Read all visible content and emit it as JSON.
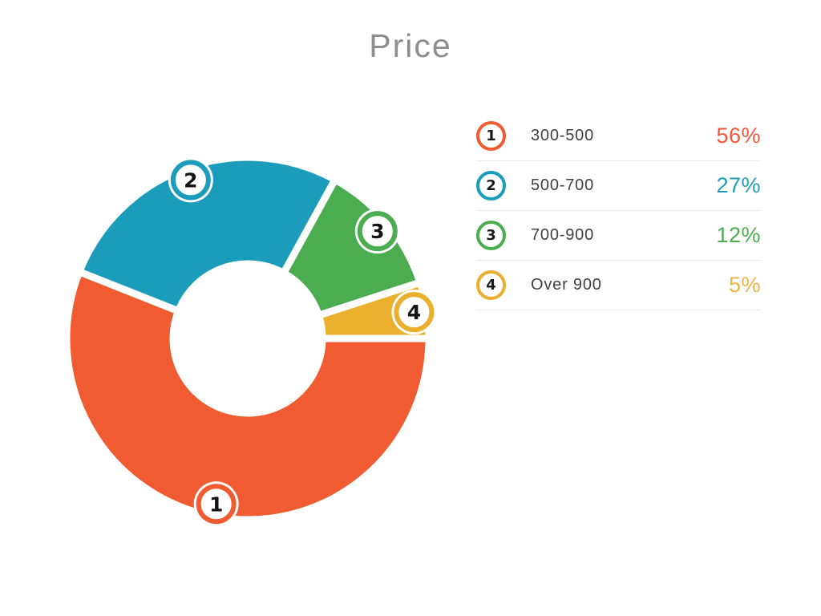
{
  "title": "Price",
  "chart_data": {
    "type": "pie",
    "donut": true,
    "title": "Price",
    "categories": [
      "300-500",
      "500-700",
      "700-900",
      "Over 900"
    ],
    "values": [
      56,
      27,
      12,
      5
    ],
    "unit": "%",
    "slice_colors": [
      "#F05B31",
      "#1A9CBA",
      "#4BAD50",
      "#EAAF2D"
    ],
    "marker_numbers": [
      "1",
      "2",
      "3",
      "4"
    ],
    "start_angle_deg": 0,
    "direction": "clockwise",
    "legend_position": "right"
  },
  "legend": {
    "rows": [
      {
        "num": "1",
        "label": "300-500",
        "value": "56%",
        "color": "#F05B31",
        "value_color": "#EF563A"
      },
      {
        "num": "2",
        "label": "500-700",
        "value": "27%",
        "color": "#1A9CBA",
        "value_color": "#1F9CBA"
      },
      {
        "num": "3",
        "label": "700-900",
        "value": "12%",
        "color": "#4BAD50",
        "value_color": "#4BAD50"
      },
      {
        "num": "4",
        "label": "Over 900",
        "value": "5%",
        "color": "#EAAF2D",
        "value_color": "#EAB543"
      }
    ]
  },
  "style": {
    "marker_number_color": "#141414",
    "slice_gap_color": "#ffffff"
  }
}
